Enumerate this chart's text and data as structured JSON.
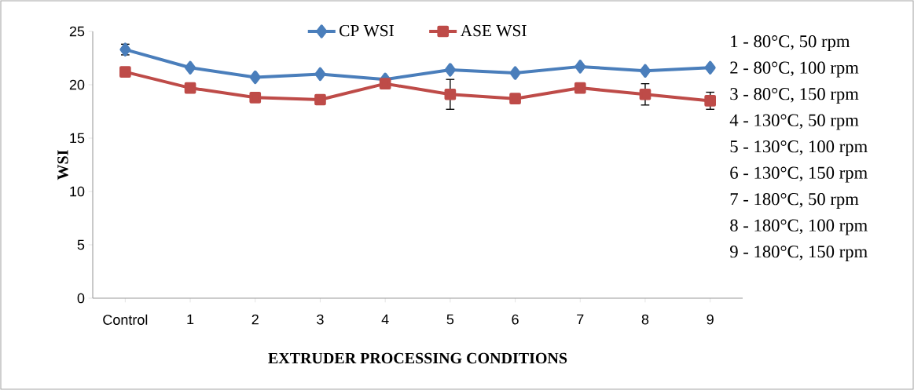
{
  "chart_data": {
    "type": "line",
    "xlabel": "EXTRUDER PROCESSING CONDITIONS",
    "ylabel": "WSI",
    "categories": [
      "Control",
      "1",
      "2",
      "3",
      "4",
      "5",
      "6",
      "7",
      "8",
      "9"
    ],
    "series": [
      {
        "name": "CP WSI",
        "color": "#4a7ebb",
        "marker": "diamond",
        "values": [
          23.3,
          21.6,
          20.7,
          21.0,
          20.5,
          21.4,
          21.1,
          21.7,
          21.3,
          21.6
        ],
        "errors": [
          0.5,
          null,
          null,
          null,
          null,
          null,
          null,
          null,
          null,
          null
        ]
      },
      {
        "name": "ASE WSI",
        "color": "#be4b48",
        "marker": "square",
        "values": [
          21.2,
          19.7,
          18.8,
          18.6,
          20.1,
          19.1,
          18.7,
          19.7,
          19.1,
          18.5
        ],
        "errors": [
          null,
          null,
          null,
          null,
          null,
          1.4,
          null,
          null,
          1.0,
          0.8
        ]
      }
    ],
    "ylim": [
      0,
      25
    ],
    "yticks": [
      0,
      5,
      10,
      15,
      20,
      25
    ],
    "grid": false,
    "legend": "top",
    "line_style": "solid",
    "annotations": [
      "1 - 80°C, 50 rpm",
      "2 - 80°C, 100 rpm",
      "3 - 80°C, 150 rpm",
      "4 - 130°C, 50 rpm",
      "5 - 130°C, 100 rpm",
      "6 - 130°C, 150 rpm",
      "7 - 180°C, 50 rpm",
      "8 - 180°C, 100 rpm",
      "9 - 180°C, 150 rpm"
    ]
  }
}
